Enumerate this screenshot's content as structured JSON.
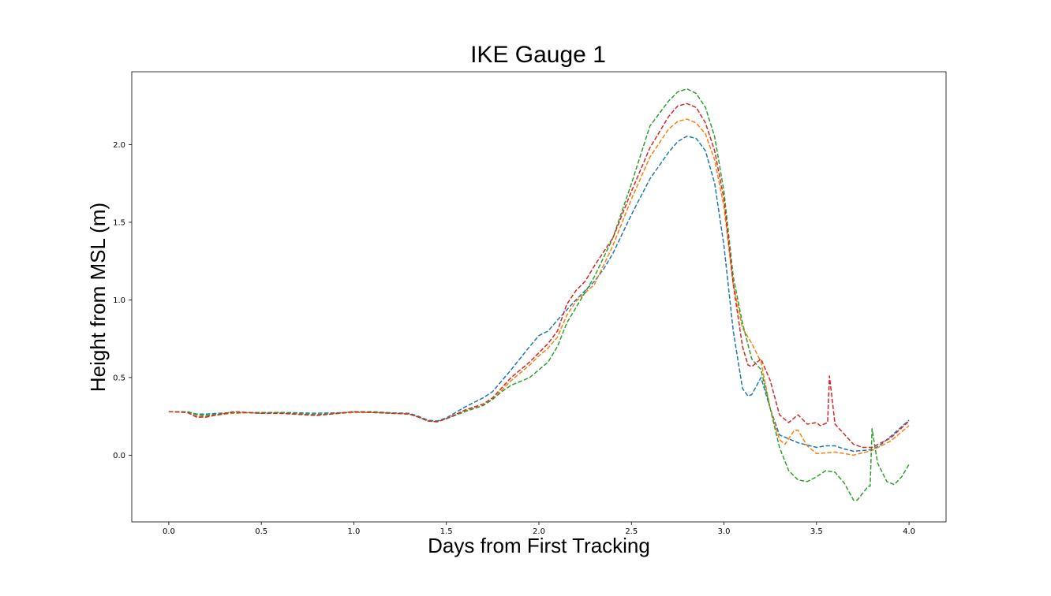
{
  "chart_data": {
    "type": "line",
    "title": "IKE Gauge 1",
    "xlabel": "Days from First Tracking",
    "ylabel": "Height from MSL (m)",
    "xlim": [
      -0.2,
      4.2
    ],
    "ylim": [
      -0.43,
      2.47
    ],
    "xticks": [
      0.0,
      0.5,
      1.0,
      1.5,
      2.0,
      2.5,
      3.0,
      3.5,
      4.0
    ],
    "xtick_labels": [
      "0.0",
      "0.5",
      "1.0",
      "1.5",
      "2.0",
      "2.5",
      "3.0",
      "3.5",
      "4.0"
    ],
    "yticks": [
      0.0,
      0.5,
      1.0,
      1.5,
      2.0
    ],
    "ytick_labels": [
      "0.0",
      "0.5",
      "1.0",
      "1.5",
      "2.0"
    ],
    "grid": false,
    "line_style": "dashed",
    "series": [
      {
        "color": "#1f77b4",
        "points": [
          [
            0.0,
            0.28
          ],
          [
            0.1,
            0.28
          ],
          [
            0.15,
            0.265
          ],
          [
            0.2,
            0.265
          ],
          [
            0.35,
            0.275
          ],
          [
            0.5,
            0.27
          ],
          [
            0.6,
            0.275
          ],
          [
            0.8,
            0.27
          ],
          [
            1.0,
            0.275
          ],
          [
            1.1,
            0.275
          ],
          [
            1.3,
            0.27
          ],
          [
            1.35,
            0.25
          ],
          [
            1.4,
            0.225
          ],
          [
            1.45,
            0.22
          ],
          [
            1.5,
            0.24
          ],
          [
            1.6,
            0.31
          ],
          [
            1.7,
            0.37
          ],
          [
            1.75,
            0.41
          ],
          [
            1.85,
            0.55
          ],
          [
            1.95,
            0.7
          ],
          [
            2.0,
            0.77
          ],
          [
            2.05,
            0.8
          ],
          [
            2.1,
            0.87
          ],
          [
            2.2,
            1.0
          ],
          [
            2.3,
            1.12
          ],
          [
            2.35,
            1.2
          ],
          [
            2.4,
            1.3
          ],
          [
            2.5,
            1.55
          ],
          [
            2.6,
            1.78
          ],
          [
            2.7,
            1.95
          ],
          [
            2.75,
            2.02
          ],
          [
            2.8,
            2.055
          ],
          [
            2.85,
            2.04
          ],
          [
            2.9,
            1.96
          ],
          [
            2.95,
            1.75
          ],
          [
            3.0,
            1.35
          ],
          [
            3.05,
            0.8
          ],
          [
            3.1,
            0.43
          ],
          [
            3.13,
            0.38
          ],
          [
            3.15,
            0.39
          ],
          [
            3.2,
            0.5
          ],
          [
            3.25,
            0.3
          ],
          [
            3.3,
            0.13
          ],
          [
            3.4,
            0.08
          ],
          [
            3.5,
            0.05
          ],
          [
            3.55,
            0.06
          ],
          [
            3.6,
            0.06
          ],
          [
            3.65,
            0.04
          ],
          [
            3.7,
            0.025
          ],
          [
            3.8,
            0.035
          ],
          [
            3.85,
            0.07
          ],
          [
            3.9,
            0.12
          ],
          [
            4.0,
            0.225
          ]
        ]
      },
      {
        "color": "#ff7f0e",
        "points": [
          [
            0.0,
            0.28
          ],
          [
            0.1,
            0.275
          ],
          [
            0.15,
            0.25
          ],
          [
            0.2,
            0.25
          ],
          [
            0.35,
            0.27
          ],
          [
            0.5,
            0.275
          ],
          [
            0.6,
            0.27
          ],
          [
            0.8,
            0.26
          ],
          [
            1.0,
            0.275
          ],
          [
            1.1,
            0.275
          ],
          [
            1.3,
            0.265
          ],
          [
            1.35,
            0.245
          ],
          [
            1.4,
            0.22
          ],
          [
            1.45,
            0.215
          ],
          [
            1.5,
            0.235
          ],
          [
            1.6,
            0.285
          ],
          [
            1.7,
            0.32
          ],
          [
            1.75,
            0.36
          ],
          [
            1.85,
            0.48
          ],
          [
            1.95,
            0.58
          ],
          [
            2.0,
            0.64
          ],
          [
            2.05,
            0.69
          ],
          [
            2.1,
            0.76
          ],
          [
            2.15,
            0.9
          ],
          [
            2.2,
            0.99
          ],
          [
            2.3,
            1.1
          ],
          [
            2.4,
            1.35
          ],
          [
            2.5,
            1.65
          ],
          [
            2.6,
            1.92
          ],
          [
            2.7,
            2.1
          ],
          [
            2.75,
            2.15
          ],
          [
            2.8,
            2.165
          ],
          [
            2.85,
            2.14
          ],
          [
            2.9,
            2.07
          ],
          [
            2.95,
            1.9
          ],
          [
            3.0,
            1.6
          ],
          [
            3.05,
            1.1
          ],
          [
            3.1,
            0.82
          ],
          [
            3.15,
            0.72
          ],
          [
            3.2,
            0.6
          ],
          [
            3.25,
            0.3
          ],
          [
            3.3,
            0.1
          ],
          [
            3.33,
            0.07
          ],
          [
            3.38,
            0.16
          ],
          [
            3.4,
            0.16
          ],
          [
            3.45,
            0.06
          ],
          [
            3.5,
            0.01
          ],
          [
            3.6,
            0.02
          ],
          [
            3.7,
            0.0
          ],
          [
            3.8,
            0.03
          ],
          [
            3.9,
            0.09
          ],
          [
            4.0,
            0.19
          ]
        ]
      },
      {
        "color": "#2ca02c",
        "points": [
          [
            0.0,
            0.28
          ],
          [
            0.1,
            0.28
          ],
          [
            0.15,
            0.26
          ],
          [
            0.2,
            0.255
          ],
          [
            0.35,
            0.275
          ],
          [
            0.5,
            0.275
          ],
          [
            0.6,
            0.275
          ],
          [
            0.8,
            0.26
          ],
          [
            1.0,
            0.28
          ],
          [
            1.1,
            0.28
          ],
          [
            1.3,
            0.265
          ],
          [
            1.35,
            0.245
          ],
          [
            1.4,
            0.22
          ],
          [
            1.45,
            0.215
          ],
          [
            1.5,
            0.235
          ],
          [
            1.6,
            0.28
          ],
          [
            1.7,
            0.32
          ],
          [
            1.75,
            0.36
          ],
          [
            1.8,
            0.41
          ],
          [
            1.85,
            0.45
          ],
          [
            1.95,
            0.5
          ],
          [
            2.0,
            0.55
          ],
          [
            2.05,
            0.6
          ],
          [
            2.1,
            0.7
          ],
          [
            2.15,
            0.85
          ],
          [
            2.2,
            0.95
          ],
          [
            2.3,
            1.15
          ],
          [
            2.4,
            1.4
          ],
          [
            2.5,
            1.75
          ],
          [
            2.6,
            2.12
          ],
          [
            2.7,
            2.28
          ],
          [
            2.75,
            2.34
          ],
          [
            2.8,
            2.36
          ],
          [
            2.85,
            2.33
          ],
          [
            2.9,
            2.24
          ],
          [
            2.95,
            2.05
          ],
          [
            3.0,
            1.7
          ],
          [
            3.05,
            1.15
          ],
          [
            3.1,
            0.85
          ],
          [
            3.15,
            0.62
          ],
          [
            3.2,
            0.55
          ],
          [
            3.25,
            0.3
          ],
          [
            3.3,
            0.05
          ],
          [
            3.35,
            -0.1
          ],
          [
            3.4,
            -0.16
          ],
          [
            3.45,
            -0.17
          ],
          [
            3.5,
            -0.14
          ],
          [
            3.55,
            -0.1
          ],
          [
            3.6,
            -0.11
          ],
          [
            3.65,
            -0.18
          ],
          [
            3.7,
            -0.29
          ],
          [
            3.72,
            -0.29
          ],
          [
            3.78,
            -0.2
          ],
          [
            3.79,
            -0.2
          ],
          [
            3.8,
            0.17
          ],
          [
            3.83,
            -0.05
          ],
          [
            3.88,
            -0.17
          ],
          [
            3.92,
            -0.19
          ],
          [
            3.96,
            -0.14
          ],
          [
            4.0,
            -0.06
          ]
        ]
      },
      {
        "color": "#d62728",
        "points": [
          [
            0.0,
            0.28
          ],
          [
            0.1,
            0.275
          ],
          [
            0.15,
            0.245
          ],
          [
            0.2,
            0.245
          ],
          [
            0.35,
            0.28
          ],
          [
            0.5,
            0.27
          ],
          [
            0.6,
            0.27
          ],
          [
            0.8,
            0.255
          ],
          [
            1.0,
            0.28
          ],
          [
            1.1,
            0.275
          ],
          [
            1.3,
            0.265
          ],
          [
            1.35,
            0.245
          ],
          [
            1.4,
            0.22
          ],
          [
            1.45,
            0.215
          ],
          [
            1.5,
            0.235
          ],
          [
            1.6,
            0.29
          ],
          [
            1.7,
            0.33
          ],
          [
            1.75,
            0.37
          ],
          [
            1.85,
            0.5
          ],
          [
            1.95,
            0.6
          ],
          [
            2.0,
            0.66
          ],
          [
            2.05,
            0.72
          ],
          [
            2.1,
            0.8
          ],
          [
            2.15,
            0.97
          ],
          [
            2.2,
            1.06
          ],
          [
            2.25,
            1.12
          ],
          [
            2.3,
            1.22
          ],
          [
            2.4,
            1.4
          ],
          [
            2.5,
            1.7
          ],
          [
            2.6,
            1.98
          ],
          [
            2.7,
            2.18
          ],
          [
            2.75,
            2.25
          ],
          [
            2.8,
            2.265
          ],
          [
            2.85,
            2.24
          ],
          [
            2.9,
            2.14
          ],
          [
            2.95,
            1.96
          ],
          [
            3.0,
            1.65
          ],
          [
            3.05,
            1.1
          ],
          [
            3.1,
            0.7
          ],
          [
            3.13,
            0.58
          ],
          [
            3.15,
            0.57
          ],
          [
            3.2,
            0.62
          ],
          [
            3.25,
            0.48
          ],
          [
            3.3,
            0.26
          ],
          [
            3.35,
            0.21
          ],
          [
            3.4,
            0.26
          ],
          [
            3.45,
            0.2
          ],
          [
            3.5,
            0.21
          ],
          [
            3.52,
            0.19
          ],
          [
            3.56,
            0.21
          ],
          [
            3.57,
            0.51
          ],
          [
            3.6,
            0.2
          ],
          [
            3.7,
            0.07
          ],
          [
            3.75,
            0.05
          ],
          [
            3.8,
            0.05
          ],
          [
            3.9,
            0.11
          ],
          [
            4.0,
            0.22
          ]
        ]
      }
    ]
  }
}
